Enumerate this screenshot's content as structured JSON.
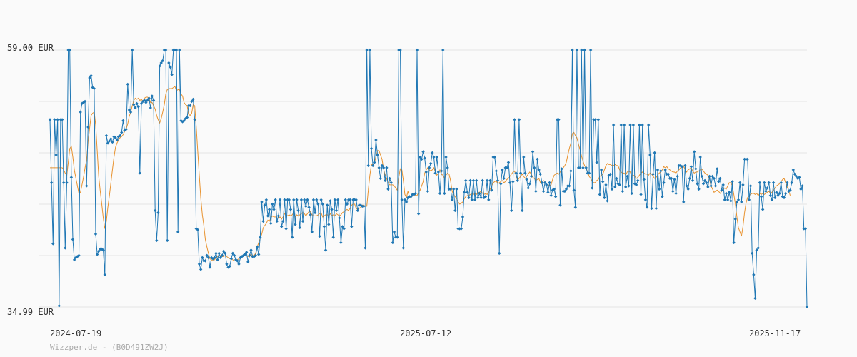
{
  "chart_data": {
    "type": "line",
    "ylim": [
      34.99,
      59.0
    ],
    "y_tick_labels": [
      "59.00 EUR",
      "34.99 EUR"
    ],
    "x_tick_labels": [
      "2024-07-19",
      "2025-07-12",
      "2025-11-17"
    ],
    "grid": true,
    "legend": "none",
    "colors": {
      "price": "#1f77b4",
      "average": "#e8922e",
      "grid": "#e4e4e4",
      "background": "#fafafa"
    },
    "credit": "Wizzper.de - (B0D491ZW2J)",
    "series": [
      {
        "values": [
          52.5,
          46.6,
          40.9,
          52.5,
          49.2,
          52.5,
          35.1,
          52.5,
          52.5,
          46.6,
          40.5,
          46.6,
          59.0,
          59.0,
          47.1,
          41.3,
          39.4,
          39.6,
          39.7,
          39.8,
          53.2,
          54.0,
          54.1,
          54.2,
          46.3,
          51.8,
          56.4,
          56.6,
          55.5,
          55.4,
          41.8,
          39.9,
          40.2,
          40.4,
          40.4,
          40.3,
          38.0,
          51.0,
          50.3,
          50.5,
          50.7,
          50.4,
          50.9,
          50.8,
          50.6,
          50.9,
          51.0,
          51.3,
          52.4,
          51.5,
          51.6,
          55.8,
          53.4,
          53.2,
          59.0,
          53.9,
          53.6,
          54.0,
          53.7,
          47.5,
          54.0,
          54.2,
          54.3,
          54.1,
          54.3,
          54.5,
          53.6,
          54.7,
          54.3,
          44.0,
          41.2,
          43.8,
          57.5,
          57.8,
          58.0,
          59.0,
          59.0,
          41.2,
          57.8,
          57.4,
          56.7,
          59.0,
          59.0,
          59.0,
          42.0,
          59.0,
          52.4,
          52.3,
          52.4,
          52.6,
          52.7,
          53.8,
          53.8,
          54.2,
          54.4,
          52.5,
          42.3,
          42.2,
          39.0,
          38.5,
          39.6,
          39.3,
          39.3,
          39.8,
          39.6,
          38.7,
          39.6,
          39.5,
          39.6,
          40.0,
          39.4,
          40.0,
          39.6,
          39.8,
          40.2,
          40.0,
          39.0,
          38.7,
          38.8,
          39.5,
          40.0,
          39.8,
          39.4,
          39.3,
          39.0,
          39.6,
          39.7,
          39.8,
          39.9,
          40.1,
          39.2,
          39.8,
          40.3,
          39.7,
          39.7,
          39.8,
          40.6,
          39.9,
          41.5,
          44.8,
          43.0,
          44.5,
          45.0,
          43.5,
          44.1,
          42.8,
          44.6,
          44.1,
          45.0,
          43.0,
          43.5,
          45.0,
          42.5,
          43.0,
          45.0,
          42.3,
          45.0,
          45.0,
          44.1,
          41.5,
          45.0,
          42.7,
          45.0,
          44.0,
          42.4,
          45.0,
          43.0,
          45.0,
          44.4,
          45.0,
          44.3,
          43.6,
          42.0,
          45.0,
          43.8,
          45.0,
          44.6,
          41.6,
          45.0,
          44.6,
          42.5,
          40.3,
          44.5,
          42.7,
          44.9,
          44.1,
          41.5,
          45.0,
          44.0,
          45.0,
          43.3,
          41.0,
          42.5,
          42.3,
          45.0,
          44.6,
          45.0,
          45.0,
          42.5,
          45.0,
          45.0,
          45.0,
          44.0,
          44.5,
          44.5,
          44.4,
          44.4,
          40.5,
          59.0,
          48.2,
          59.0,
          49.8,
          48.2,
          48.5,
          50.6,
          49.2,
          48.0,
          47.0,
          48.2,
          48.0,
          46.8,
          48.0,
          46.0,
          47.0,
          46.6,
          41.0,
          42.0,
          41.5,
          41.5,
          59.0,
          59.0,
          45.0,
          40.5,
          45.0,
          44.8,
          45.2,
          45.3,
          45.3,
          45.5,
          45.5,
          45.6,
          59.0,
          43.7,
          49.0,
          48.8,
          49.5,
          48.9,
          47.6,
          45.8,
          48.0,
          48.4,
          49.4,
          49.0,
          47.5,
          49.0,
          47.6,
          45.6,
          47.7,
          59.0,
          45.6,
          49.0,
          48.0,
          46.0,
          46.0,
          45.0,
          46.0,
          44.0,
          46.0,
          42.3,
          42.3,
          42.3,
          43.4,
          45.7,
          46.8,
          45.7,
          45.2,
          46.8,
          45.0,
          46.8,
          45.0,
          46.8,
          45.2,
          45.6,
          45.2,
          46.8,
          45.2,
          45.3,
          46.8,
          45.0,
          46.8,
          45.9,
          49.0,
          49.0,
          47.7,
          46.8,
          40.0,
          46.5,
          47.8,
          47.0,
          48.0,
          48.0,
          48.5,
          46.6,
          44.0,
          46.7,
          52.5,
          47.5,
          46.8,
          52.5,
          47.5,
          44.0,
          49.0,
          47.5,
          46.9,
          46.1,
          46.5,
          47.2,
          49.5,
          48.0,
          45.8,
          48.8,
          47.8,
          47.4,
          46.6,
          45.8,
          46.6,
          46.4,
          45.7,
          46.6,
          45.4,
          45.9,
          46.0,
          45.3,
          52.5,
          52.5,
          44.5,
          47.9,
          45.8,
          45.8,
          46.0,
          46.3,
          46.3,
          47.7,
          59.0,
          45.9,
          44.3,
          59.0,
          48.0,
          48.0,
          59.0,
          48.0,
          59.0,
          48.0,
          47.5,
          47.5,
          59.0,
          46.1,
          52.5,
          52.5,
          48.5,
          52.5,
          45.5,
          47.8,
          46.7,
          45.2,
          46.4,
          44.9,
          47.3,
          47.4,
          46.0,
          52.0,
          46.2,
          47.0,
          46.5,
          46.4,
          52.0,
          45.8,
          52.0,
          46.2,
          47.2,
          46.3,
          52.0,
          45.6,
          52.0,
          46.5,
          46.4,
          46.8,
          52.0,
          45.5,
          52.0,
          46.9,
          45.0,
          44.3,
          52.0,
          49.2,
          44.2,
          47.4,
          49.4,
          44.2,
          47.8,
          46.0,
          47.7,
          45.3,
          46.6,
          47.8,
          47.4,
          47.4,
          47.0,
          47.0,
          45.8,
          46.9,
          45.6,
          47.2,
          48.2,
          48.2,
          48.1,
          44.8,
          48.2,
          46.3,
          46.0,
          47.0,
          48.1,
          46.8,
          49.5,
          47.9,
          46.5,
          46.0,
          49.0,
          47.2,
          46.5,
          46.8,
          46.6,
          46.2,
          47.2,
          46.3,
          47.2,
          47.0,
          46.3,
          47.9,
          46.7,
          47.0,
          45.9,
          46.4,
          45.0,
          45.6,
          45.0,
          45.7,
          44.9,
          46.7,
          41.0,
          43.2,
          44.8,
          45.0,
          46.6,
          44.8,
          46.4,
          48.8,
          48.8,
          48.8,
          45.0,
          46.3,
          40.0,
          38.0,
          35.8,
          40.3,
          40.5,
          46.6,
          45.3,
          44.1,
          46.6,
          45.8,
          46.1,
          46.6,
          45.4,
          45.0,
          46.6,
          45.2,
          45.7,
          45.4,
          45.6,
          46.6,
          45.3,
          45.2,
          45.6,
          46.6,
          45.8,
          45.9,
          46.6,
          47.8,
          47.4,
          47.2,
          47.0,
          47.1,
          46.0,
          46.3,
          42.3,
          42.3,
          35.0
        ],
        "color": "#1f77b4"
      },
      {
        "values": [
          48.0,
          48.0,
          48.0,
          48.0,
          48.0,
          48.0,
          48.0,
          48.0,
          48.0,
          47.8,
          47.5,
          47.3,
          48.5,
          49.8,
          50.0,
          49.0,
          47.8,
          47.0,
          46.3,
          45.6,
          45.7,
          46.4,
          47.1,
          48.0,
          48.7,
          50.4,
          51.7,
          52.9,
          53.1,
          53.2,
          52.0,
          49.6,
          47.2,
          45.8,
          44.6,
          43.3,
          42.3,
          43.0,
          44.3,
          45.4,
          46.6,
          47.8,
          49.0,
          49.9,
          50.3,
          50.6,
          50.8,
          50.9,
          51.1,
          51.4,
          51.6,
          52.1,
          52.8,
          53.2,
          53.8,
          54.3,
          54.5,
          54.4,
          54.5,
          54.3,
          54.4,
          54.2,
          54.5,
          54.6,
          54.6,
          54.5,
          54.1,
          54.1,
          53.8,
          53.5,
          52.9,
          52.5,
          52.2,
          52.6,
          53.2,
          53.9,
          54.9,
          55.3,
          55.4,
          55.4,
          55.4,
          55.5,
          55.6,
          55.2,
          55.3,
          55.3,
          54.9,
          54.7,
          54.1,
          53.9,
          53.8,
          53.0,
          52.9,
          53.1,
          53.9,
          53.8,
          51.9,
          49.5,
          47.3,
          45.2,
          43.6,
          42.6,
          41.3,
          40.6,
          40.0,
          39.5,
          39.4,
          39.3,
          39.4,
          39.6,
          39.7,
          39.8,
          39.8,
          39.7,
          39.7,
          39.8,
          39.7,
          39.6,
          39.5,
          39.5,
          39.4,
          39.3,
          39.3,
          39.4,
          39.5,
          39.6,
          39.7,
          39.8,
          39.9,
          39.8,
          39.7,
          39.8,
          39.9,
          39.8,
          39.8,
          40.0,
          40.6,
          41.0,
          41.4,
          41.8,
          42.4,
          42.6,
          42.8,
          43.1,
          43.0,
          43.3,
          43.5,
          43.4,
          43.4,
          43.3,
          43.3,
          43.4,
          43.2,
          43.4,
          43.7,
          43.6,
          43.5,
          43.6,
          43.5,
          43.6,
          43.8,
          43.4,
          43.6,
          43.5,
          43.6,
          43.7,
          43.8,
          43.7,
          43.5,
          43.7,
          43.9,
          43.9,
          43.6,
          43.5,
          43.5,
          43.5,
          43.6,
          43.7,
          43.8,
          43.4,
          43.5,
          43.6,
          43.6,
          43.5,
          43.7,
          43.5,
          43.6,
          43.5,
          43.7,
          43.6,
          43.5,
          43.6,
          43.8,
          43.9,
          44.0,
          44.1,
          44.0,
          44.2,
          44.5,
          44.6,
          44.6,
          44.2,
          44.1,
          44.2,
          44.3,
          44.5,
          44.5,
          44.4,
          44.4,
          46.0,
          47.3,
          48.3,
          48.3,
          48.5,
          49.0,
          49.6,
          49.6,
          49.2,
          48.8,
          47.9,
          47.3,
          47.0,
          46.6,
          46.4,
          46.4,
          46.4,
          46.3,
          46.1,
          45.9,
          47.1,
          47.9,
          47.8,
          46.8,
          45.5,
          45.2,
          45.8,
          45.3,
          45.2,
          45.6,
          45.6,
          45.4,
          45.4,
          45.7,
          45.9,
          46.3,
          46.7,
          47.5,
          47.8,
          48.0,
          47.8,
          47.7,
          47.8,
          48.0,
          47.6,
          47.3,
          47.5,
          47.8,
          47.4,
          47.3,
          47.0,
          47.3,
          47.5,
          47.4,
          46.8,
          45.8,
          45.5,
          45.3,
          45.1,
          44.8,
          44.6,
          44.7,
          44.8,
          45.1,
          45.3,
          45.4,
          45.4,
          45.5,
          45.6,
          45.5,
          45.6,
          45.5,
          45.7,
          45.7,
          45.8,
          45.6,
          45.5,
          45.6,
          45.5,
          45.7,
          46.0,
          46.3,
          46.6,
          46.7,
          46.8,
          46.5,
          46.6,
          46.7,
          46.8,
          46.6,
          46.7,
          46.9,
          47.0,
          47.2,
          47.4,
          47.6,
          47.7,
          47.3,
          46.8,
          47.0,
          47.2,
          47.4,
          47.2,
          47.0,
          47.2,
          47.4,
          47.6,
          47.4,
          47.1,
          47.0,
          46.8,
          46.9,
          47.0,
          46.6,
          46.5,
          46.8,
          46.7,
          46.4,
          46.4,
          46.3,
          46.4,
          46.9,
          47.3,
          47.4,
          47.5,
          47.4,
          47.6,
          47.8,
          48.0,
          48.2,
          48.5,
          49.2,
          49.8,
          50.3,
          51.2,
          51.3,
          51.0,
          50.8,
          50.2,
          49.7,
          49.1,
          48.6,
          48.2,
          48.0,
          47.6,
          47.2,
          47.0,
          46.7,
          46.6,
          46.6,
          46.8,
          46.9,
          47.2,
          47.3,
          47.4,
          47.8,
          48.2,
          48.4,
          48.3,
          48.3,
          48.2,
          48.2,
          48.3,
          48.2,
          48.2,
          47.8,
          47.6,
          47.5,
          47.5,
          47.3,
          47.6,
          47.7,
          47.6,
          47.2,
          47.3,
          47.2,
          47.0,
          47.1,
          47.3,
          47.5,
          47.6,
          47.5,
          47.4,
          47.4,
          47.3,
          47.5,
          47.4,
          47.2,
          47.0,
          47.1,
          47.3,
          47.5,
          47.6,
          47.8,
          48.1,
          48.0,
          48.1,
          47.9,
          47.8,
          47.7,
          47.6,
          47.6,
          47.5,
          47.7,
          47.8,
          48.0,
          48.2,
          48.1,
          47.9,
          47.6,
          47.8,
          47.9,
          48.0,
          47.7,
          47.5,
          47.6,
          47.6,
          47.7,
          47.8,
          47.9,
          47.7,
          47.5,
          47.4,
          47.3,
          46.9,
          46.3,
          46.0,
          45.7,
          45.8,
          45.9,
          45.8,
          45.6,
          45.8,
          46.0,
          46.1,
          46.0,
          46.3,
          46.6,
          46.6,
          46.3,
          45.5,
          44.6,
          43.4,
          42.4,
          42.0,
          41.6,
          42.5,
          43.8,
          44.7,
          45.2,
          45.4,
          45.5,
          45.6,
          45.6,
          45.5,
          45.6,
          45.4,
          45.6,
          45.5,
          45.6,
          45.5,
          45.6,
          45.7,
          45.8,
          45.6,
          45.7,
          45.9,
          46.1,
          46.3,
          46.4,
          46.5,
          46.7,
          46.9,
          47.0,
          46.6,
          46.2,
          45.9,
          45.4
        ],
        "color": "#e8922e"
      }
    ]
  }
}
